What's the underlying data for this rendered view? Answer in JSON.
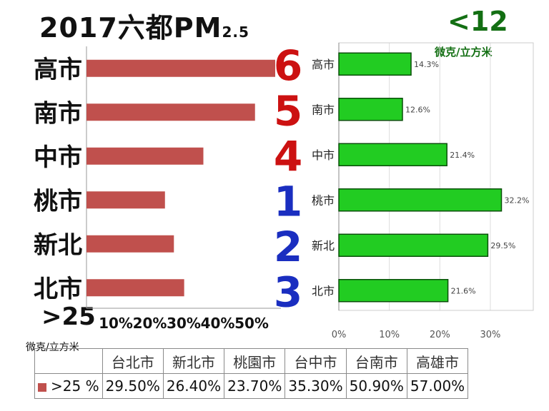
{
  "title": {
    "main": "2017六都PM",
    "sub": "2.5"
  },
  "left_panel": {
    "threshold": ">25",
    "unit": "微克/立方米"
  },
  "right_panel": {
    "threshold": "<12",
    "unit": "微克/立方米"
  },
  "colors": {
    "left_bar": "#c0504d",
    "right_bar": "#22cc22",
    "rank_red": "#cc1111",
    "rank_blue": "#1a2ec0",
    "right_header": "#136f13"
  },
  "chart_data": [
    {
      "type": "bar",
      "orientation": "horizontal",
      "categories": [
        "高市",
        "南市",
        "中市",
        "桃市",
        "新北",
        "北市"
      ],
      "values": [
        57.0,
        50.9,
        35.3,
        23.7,
        26.4,
        29.5
      ],
      "xlim": [
        0,
        57.0
      ],
      "tick_labels": [
        "10%",
        "20%",
        "30%",
        "40%",
        "50%"
      ],
      "tick_values": [
        10,
        20,
        30,
        40,
        50
      ],
      "grid": false
    },
    {
      "type": "bar",
      "orientation": "horizontal",
      "categories": [
        "高市",
        "南市",
        "中市",
        "桃市",
        "新北",
        "北市"
      ],
      "values": [
        14.3,
        12.6,
        21.4,
        32.2,
        29.5,
        21.6
      ],
      "value_labels": [
        "14.3%",
        "12.6%",
        "21.4%",
        "32.2%",
        "29.5%",
        "21.6%"
      ],
      "ranks": [
        "6",
        "5",
        "4",
        "1",
        "2",
        "3"
      ],
      "rank_colors": [
        "red",
        "red",
        "red",
        "blue",
        "blue",
        "blue"
      ],
      "xlim": [
        0,
        38.5
      ],
      "tick_labels": [
        "0%",
        "10%",
        "20%",
        "30%"
      ],
      "tick_values": [
        0,
        10,
        20,
        30
      ],
      "grid": true
    }
  ],
  "table": {
    "headers": [
      "",
      "台北市",
      "新北市",
      "桃園市",
      "台中市",
      "台南市",
      "高雄市"
    ],
    "row_label": ">25 %",
    "values": [
      "29.50%",
      "26.40%",
      "23.70%",
      "35.30%",
      "50.90%",
      "57.00%"
    ]
  }
}
